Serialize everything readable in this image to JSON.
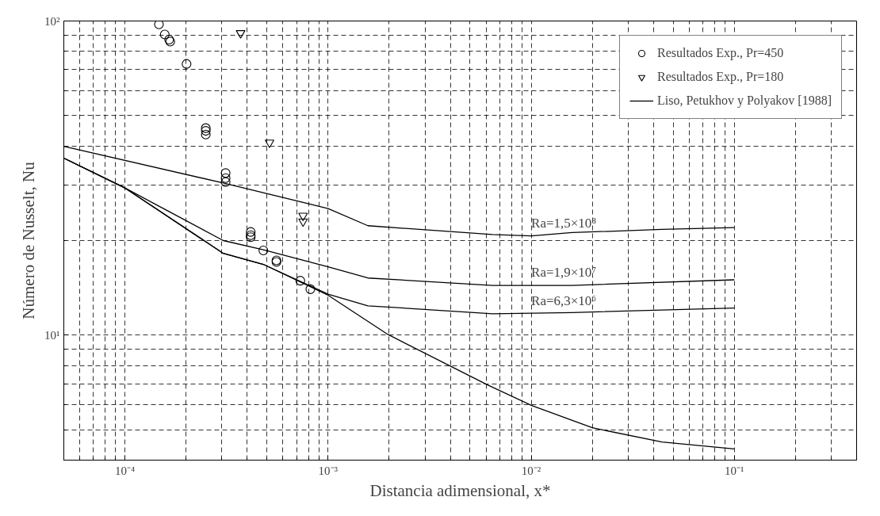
{
  "chart_data": {
    "type": "scatter",
    "xlabel": "Distancia adimensional, x*",
    "ylabel": "Número de Nusselt, Nu",
    "log": "xy",
    "xlim": [
      5e-05,
      0.4
    ],
    "ylim": [
      4,
      100
    ],
    "xticks": [
      {
        "value": 0.0001,
        "label": "10⁻⁴"
      },
      {
        "value": 0.001,
        "label": "10⁻³"
      },
      {
        "value": 0.01,
        "label": "10⁻²"
      },
      {
        "value": 0.1,
        "label": "10⁻¹"
      }
    ],
    "yticks": [
      {
        "value": 10,
        "label": "10¹"
      },
      {
        "value": 100,
        "label": "10²"
      }
    ],
    "grid": true,
    "legend": "top right",
    "series": [
      {
        "name": "Resultados Exp., Pr=450",
        "marker": "circle",
        "color": "#000000",
        "x": [
          0.000147,
          0.000157,
          0.000165,
          0.000167,
          0.000201,
          0.00025,
          0.00025,
          0.00025,
          0.000313,
          0.000313,
          0.000313,
          0.000416,
          0.000416,
          0.000416,
          0.00048,
          0.000557,
          0.000557,
          0.00073,
          0.000818
        ],
        "values": [
          97.6,
          90.6,
          87.2,
          86,
          73,
          45.6,
          44.7,
          43.5,
          32.8,
          31.6,
          30.7,
          21.3,
          20.8,
          20.5,
          18.6,
          17.3,
          17.1,
          14.9,
          14.0
        ]
      },
      {
        "name": "Resultados Exp., Pr=180",
        "marker": "triangle",
        "color": "#000000",
        "x": [
          0.000371,
          0.000515,
          0.000753,
          0.000753
        ],
        "values": [
          91.5,
          41,
          24,
          23
        ]
      },
      {
        "name": "Ra=1,5×10⁸",
        "type": "line",
        "marker": "none",
        "color": "#000000",
        "x": [
          5e-05,
          0.000305,
          0.001,
          0.00157,
          0.00645,
          0.01,
          0.0159,
          0.044,
          0.1
        ],
        "values": [
          39.9,
          30.5,
          25.3,
          22.3,
          20.9,
          20.7,
          21.2,
          21.7,
          22.0
        ]
      },
      {
        "name": "Ra=1,9×10⁷",
        "type": "line",
        "marker": "none",
        "color": "#000000",
        "x": [
          5e-05,
          0.0001,
          0.00016,
          0.000305,
          0.00048,
          0.001,
          0.00157,
          0.00645,
          0.0159,
          0.1
        ],
        "values": [
          36.6,
          29.4,
          25.0,
          20.0,
          18.7,
          16.5,
          15.2,
          14.4,
          14.4,
          15.0
        ]
      },
      {
        "name": "Ra=6,3×10⁶",
        "type": "line",
        "marker": "none",
        "color": "#000000",
        "x": [
          5e-05,
          0.0001,
          0.000305,
          0.00048,
          0.001,
          0.00157,
          0.00645,
          0.0159,
          0.1
        ],
        "values": [
          36.6,
          29.4,
          18.2,
          16.8,
          13.5,
          12.4,
          11.7,
          11.8,
          12.2
        ]
      },
      {
        "name": "Liso, Petukhov y Polyakov [1988]",
        "type": "line",
        "marker": "none",
        "color": "#000000",
        "x": [
          5e-05,
          0.0001,
          0.000305,
          0.00048,
          0.001,
          0.00197,
          0.0061,
          0.01,
          0.02,
          0.044,
          0.1
        ],
        "values": [
          36.6,
          29.4,
          18.2,
          16.8,
          13.4,
          10.05,
          6.94,
          5.98,
          5.07,
          4.57,
          4.34
        ]
      }
    ]
  }
}
